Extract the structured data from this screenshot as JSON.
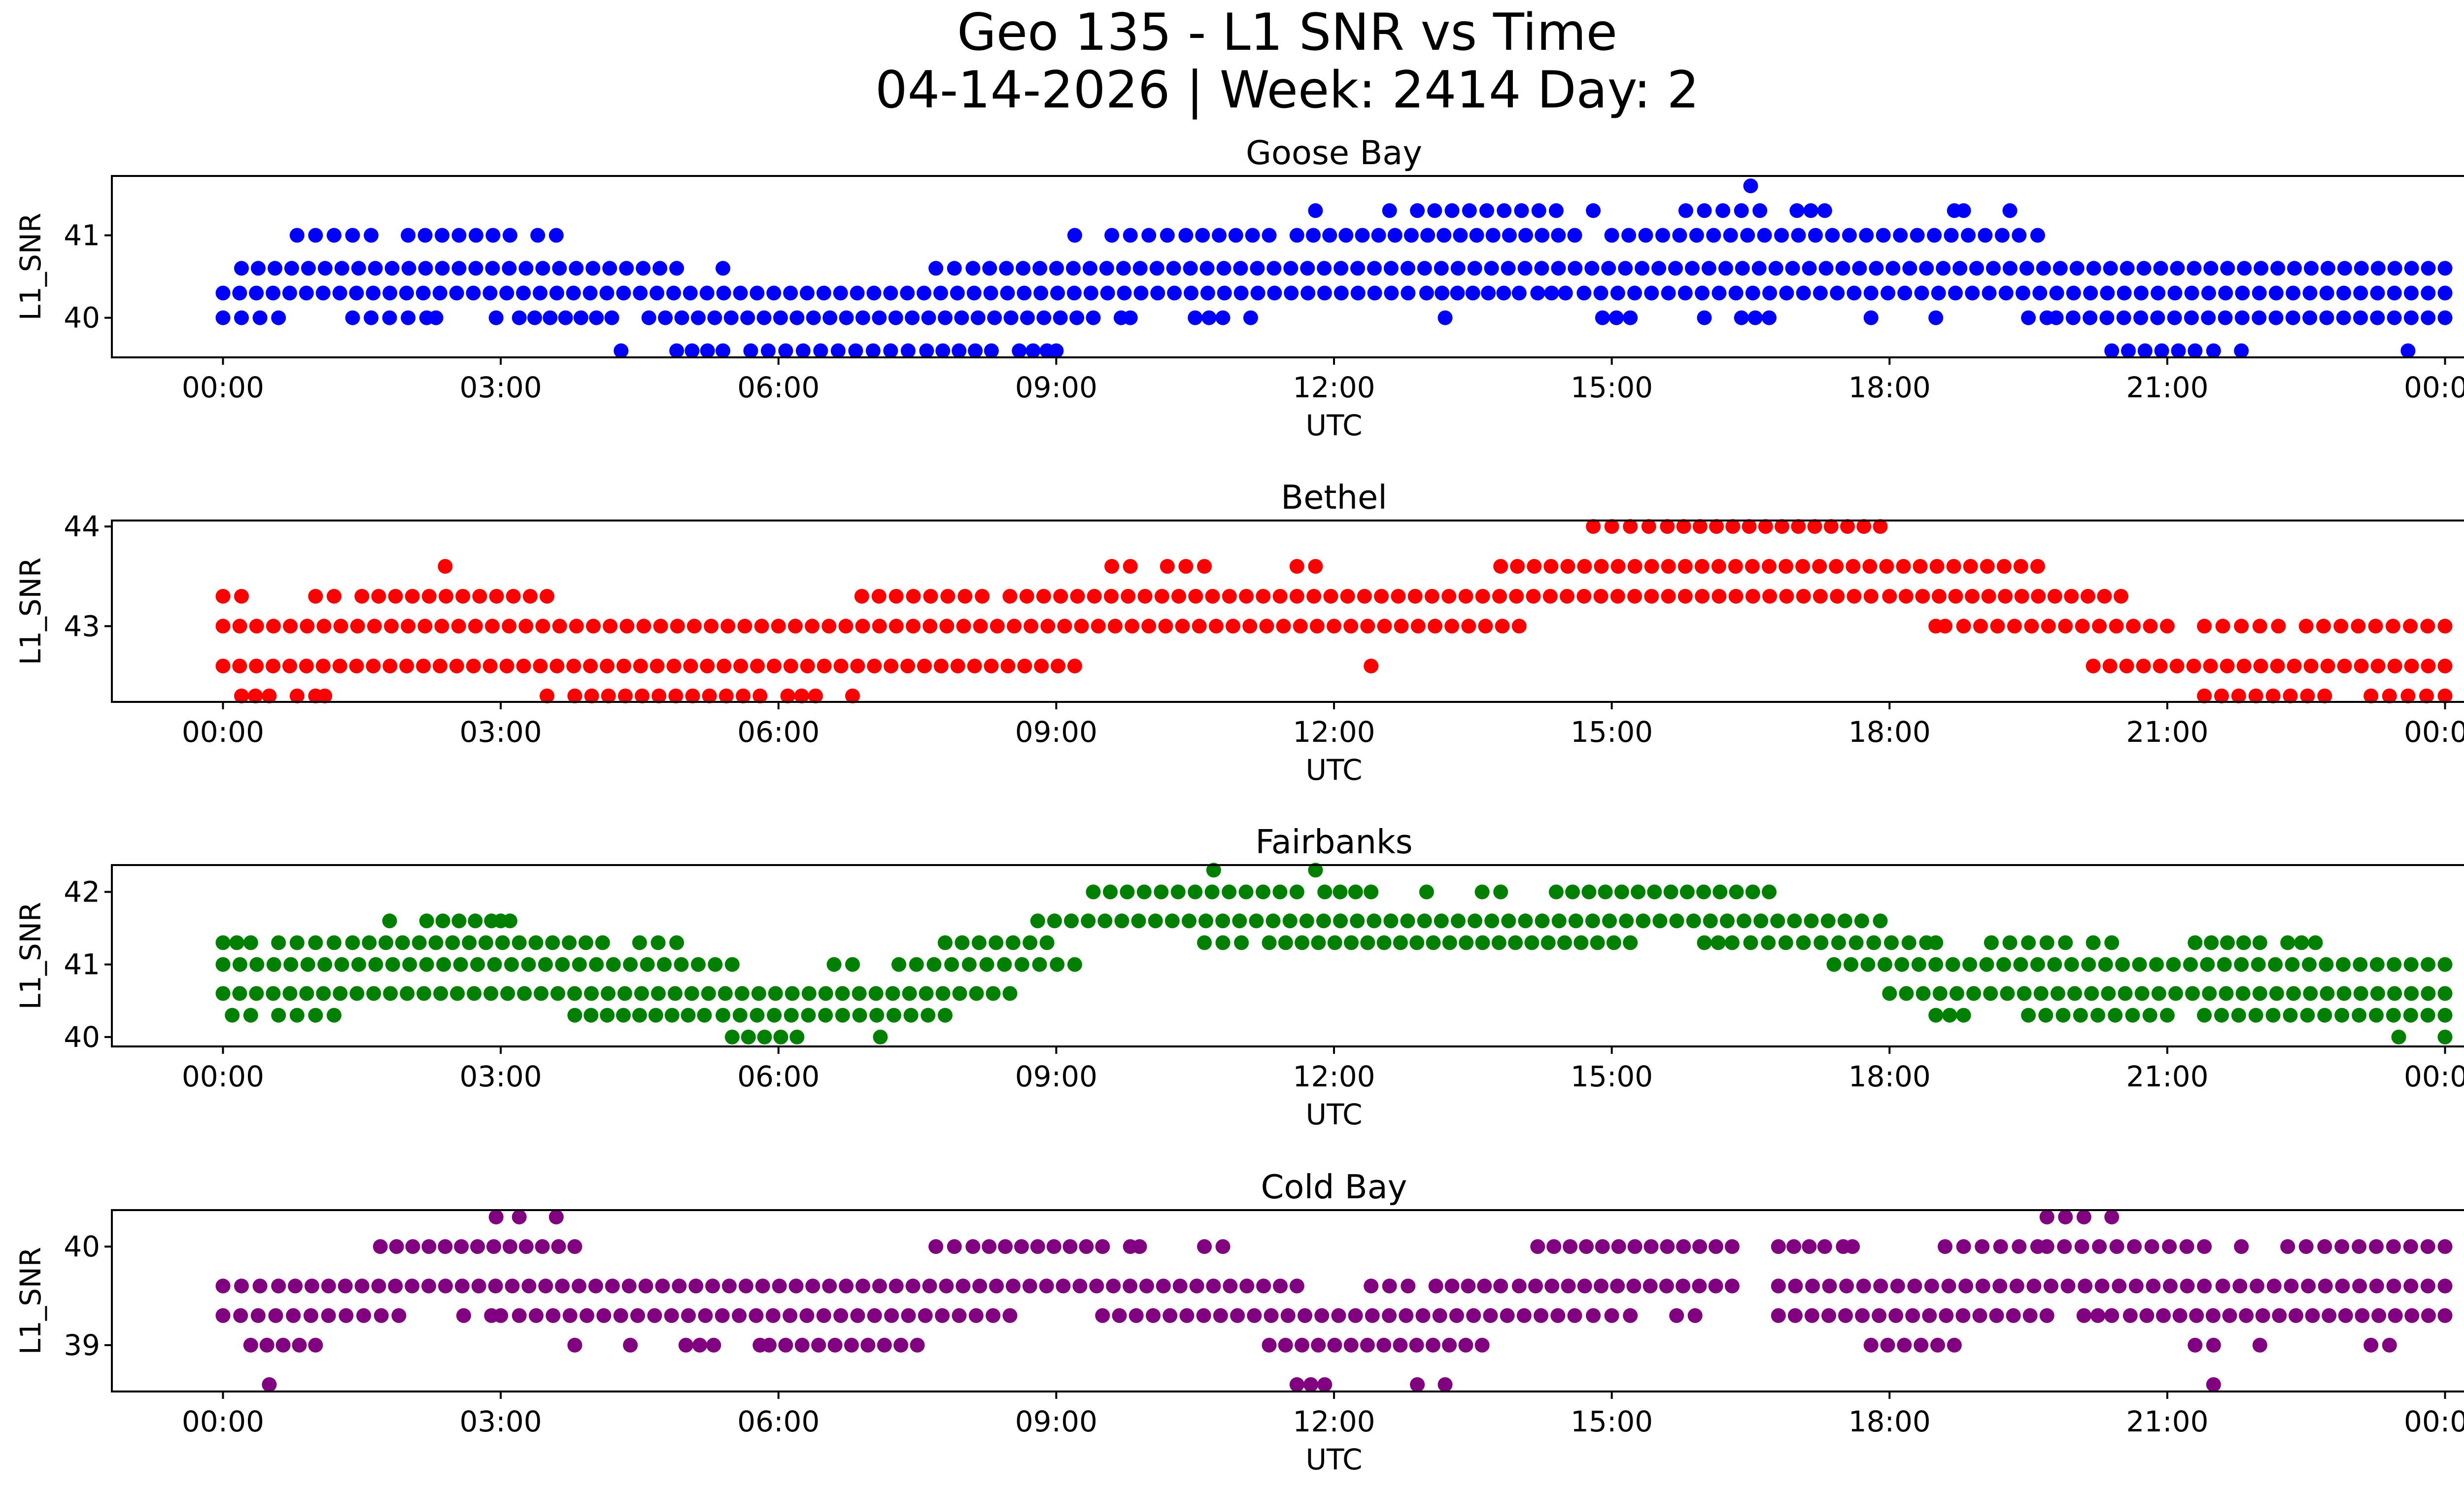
{
  "figure": {
    "title_line1": "Geo 135 - L1 SNR vs Time",
    "title_line2": "04-14-2026 | Week: 2414 Day: 2"
  },
  "chart_data": [
    {
      "type": "scatter",
      "title": "Goose Bay",
      "xlabel": "UTC",
      "ylabel": "L1_SNR",
      "color": "#0000ff",
      "xlim": [
        -1.2,
        25.2
      ],
      "ylim": [
        39.52,
        41.72
      ],
      "xticks": [
        0,
        3,
        6,
        9,
        12,
        15,
        18,
        21,
        24
      ],
      "xtick_labels": [
        "00:00",
        "03:00",
        "06:00",
        "09:00",
        "12:00",
        "15:00",
        "18:00",
        "21:00",
        "00:00"
      ],
      "yticks": [
        40,
        41
      ],
      "ytick_labels": [
        "40",
        "41"
      ],
      "levels": [
        {
          "y": 39.6,
          "segments": [
            [
              4.3,
              4.3
            ],
            [
              4.9,
              5.4
            ],
            [
              5.7,
              7.4
            ],
            [
              7.6,
              8.3
            ],
            [
              8.6,
              8.9
            ],
            [
              9.0,
              9.0
            ],
            [
              20.4,
              21.3
            ],
            [
              21.5,
              21.5
            ],
            [
              21.8,
              21.8
            ],
            [
              23.6,
              23.6
            ]
          ]
        },
        {
          "y": 40.0,
          "segments": [
            [
              0.0,
              0.6
            ],
            [
              1.4,
              2.2
            ],
            [
              2.3,
              2.3
            ],
            [
              2.95,
              3.0
            ],
            [
              3.2,
              4.2
            ],
            [
              4.6,
              9.4
            ],
            [
              9.7,
              9.8
            ],
            [
              10.5,
              10.8
            ],
            [
              11.1,
              11.1
            ],
            [
              13.2,
              13.2
            ],
            [
              14.9,
              15.2
            ],
            [
              16.0,
              16.0
            ],
            [
              16.4,
              16.7
            ],
            [
              17.8,
              17.8
            ],
            [
              18.5,
              18.5
            ],
            [
              19.5,
              19.7
            ],
            [
              19.8,
              24.0
            ]
          ]
        },
        {
          "y": 40.3,
          "segments": [
            [
              0.0,
              12.8
            ],
            [
              13.0,
              14.0
            ],
            [
              14.2,
              14.5
            ],
            [
              14.7,
              24.0
            ]
          ]
        },
        {
          "y": 40.6,
          "segments": [
            [
              0.2,
              4.9
            ],
            [
              5.4,
              5.4
            ],
            [
              7.7,
              7.9
            ],
            [
              8.1,
              24.0
            ]
          ]
        },
        {
          "y": 41.0,
          "segments": [
            [
              0.8,
              1.6
            ],
            [
              2.0,
              3.1
            ],
            [
              3.4,
              3.6
            ],
            [
              9.2,
              9.2
            ],
            [
              9.6,
              10.2
            ],
            [
              10.4,
              11.3
            ],
            [
              11.6,
              14.6
            ],
            [
              15.0,
              19.4
            ],
            [
              19.6,
              19.6
            ]
          ]
        },
        {
          "y": 41.3,
          "segments": [
            [
              11.8,
              11.8
            ],
            [
              12.6,
              12.6
            ],
            [
              12.9,
              14.4
            ],
            [
              14.8,
              14.8
            ],
            [
              15.8,
              16.6
            ],
            [
              17.0,
              17.3
            ],
            [
              18.7,
              18.8
            ],
            [
              19.3,
              19.3
            ]
          ]
        },
        {
          "y": 41.6,
          "segments": [
            [
              16.5,
              16.5
            ]
          ]
        }
      ]
    },
    {
      "type": "scatter",
      "title": "Bethel",
      "xlabel": "UTC",
      "ylabel": "L1_SNR",
      "color": "#ff0000",
      "xlim": [
        -1.2,
        25.2
      ],
      "ylim": [
        42.24,
        44.06
      ],
      "xticks": [
        0,
        3,
        6,
        9,
        12,
        15,
        18,
        21,
        24
      ],
      "xtick_labels": [
        "00:00",
        "03:00",
        "06:00",
        "09:00",
        "12:00",
        "15:00",
        "18:00",
        "21:00",
        "00:00"
      ],
      "yticks": [
        43,
        44
      ],
      "ytick_labels": [
        "43",
        "44"
      ],
      "levels": [
        {
          "y": 42.3,
          "segments": [
            [
              0.2,
              0.5
            ],
            [
              0.8,
              0.8
            ],
            [
              1.0,
              1.1
            ],
            [
              3.5,
              3.5
            ],
            [
              3.8,
              5.8
            ],
            [
              6.1,
              6.4
            ],
            [
              6.8,
              6.8
            ],
            [
              21.4,
              22.7
            ],
            [
              23.2,
              24.0
            ]
          ]
        },
        {
          "y": 42.6,
          "segments": [
            [
              0.0,
              9.2
            ],
            [
              12.4,
              12.4
            ],
            [
              20.2,
              24.0
            ]
          ]
        },
        {
          "y": 43.0,
          "segments": [
            [
              0.0,
              14.0
            ],
            [
              18.5,
              18.6
            ],
            [
              18.8,
              21.0
            ],
            [
              21.4,
              21.4
            ],
            [
              21.6,
              22.2
            ],
            [
              22.5,
              24.0
            ]
          ]
        },
        {
          "y": 43.3,
          "segments": [
            [
              0.0,
              0.2
            ],
            [
              1.0,
              1.2
            ],
            [
              1.5,
              3.5
            ],
            [
              6.9,
              8.2
            ],
            [
              8.5,
              17.8
            ],
            [
              18.0,
              20.5
            ]
          ]
        },
        {
          "y": 43.6,
          "segments": [
            [
              2.4,
              2.4
            ],
            [
              9.6,
              9.8
            ],
            [
              10.2,
              10.6
            ],
            [
              11.6,
              11.8
            ],
            [
              13.8,
              19.6
            ]
          ]
        },
        {
          "y": 44.0,
          "segments": [
            [
              14.8,
              15.0
            ],
            [
              15.2,
              15.4
            ],
            [
              15.6,
              17.9
            ]
          ]
        }
      ]
    },
    {
      "type": "scatter",
      "title": "Fairbanks",
      "xlabel": "UTC",
      "ylabel": "L1_SNR",
      "color": "#008000",
      "xlim": [
        -1.2,
        25.2
      ],
      "ylim": [
        39.87,
        42.37
      ],
      "xticks": [
        0,
        3,
        6,
        9,
        12,
        15,
        18,
        21,
        24
      ],
      "xtick_labels": [
        "00:00",
        "03:00",
        "06:00",
        "09:00",
        "12:00",
        "15:00",
        "18:00",
        "21:00",
        "00:00"
      ],
      "yticks": [
        40,
        41,
        42
      ],
      "ytick_labels": [
        "40",
        "41",
        "42"
      ],
      "levels": [
        {
          "y": 40.0,
          "segments": [
            [
              5.5,
              6.2
            ],
            [
              7.1,
              7.1
            ],
            [
              23.5,
              23.5
            ],
            [
              24.0,
              24.0
            ]
          ]
        },
        {
          "y": 40.3,
          "segments": [
            [
              0.1,
              0.3
            ],
            [
              0.6,
              1.2
            ],
            [
              3.8,
              5.2
            ],
            [
              5.4,
              7.8
            ],
            [
              18.5,
              18.8
            ],
            [
              19.5,
              21.0
            ],
            [
              21.4,
              24.0
            ]
          ]
        },
        {
          "y": 40.6,
          "segments": [
            [
              0.0,
              8.5
            ],
            [
              18.0,
              24.0
            ]
          ]
        },
        {
          "y": 41.0,
          "segments": [
            [
              0.0,
              5.5
            ],
            [
              6.6,
              6.8
            ],
            [
              7.3,
              9.2
            ],
            [
              17.4,
              24.0
            ]
          ]
        },
        {
          "y": 41.3,
          "segments": [
            [
              0.0,
              0.3
            ],
            [
              0.6,
              1.2
            ],
            [
              1.4,
              4.1
            ],
            [
              4.5,
              4.9
            ],
            [
              7.8,
              8.9
            ],
            [
              10.6,
              11.0
            ],
            [
              11.3,
              15.2
            ],
            [
              16.0,
              16.3
            ],
            [
              16.5,
              18.4
            ],
            [
              18.5,
              18.5
            ],
            [
              19.1,
              19.9
            ],
            [
              20.2,
              20.4
            ],
            [
              21.3,
              22.0
            ],
            [
              22.3,
              22.6
            ]
          ]
        },
        {
          "y": 41.6,
          "segments": [
            [
              1.8,
              1.8
            ],
            [
              2.2,
              2.9
            ],
            [
              3.0,
              3.1
            ],
            [
              8.8,
              17.7
            ],
            [
              17.9,
              17.9
            ]
          ]
        },
        {
          "y": 42.0,
          "segments": [
            [
              9.4,
              11.6
            ],
            [
              11.9,
              12.4
            ],
            [
              13.0,
              13.0
            ],
            [
              13.6,
              13.8
            ],
            [
              14.4,
              16.7
            ]
          ]
        },
        {
          "y": 42.3,
          "segments": [
            [
              10.7,
              10.7
            ],
            [
              11.8,
              11.8
            ]
          ]
        }
      ]
    },
    {
      "type": "scatter",
      "title": "Cold Bay",
      "xlabel": "UTC",
      "ylabel": "L1_SNR",
      "color": "#800080",
      "xlim": [
        -1.2,
        25.2
      ],
      "ylim": [
        38.53,
        40.37
      ],
      "xticks": [
        0,
        3,
        6,
        9,
        12,
        15,
        18,
        21,
        24
      ],
      "xtick_labels": [
        "00:00",
        "03:00",
        "06:00",
        "09:00",
        "12:00",
        "15:00",
        "18:00",
        "21:00",
        "00:00"
      ],
      "yticks": [
        39,
        40
      ],
      "ytick_labels": [
        "39",
        "40"
      ],
      "levels": [
        {
          "y": 38.6,
          "segments": [
            [
              0.5,
              0.5
            ],
            [
              11.6,
              11.9
            ],
            [
              12.9,
              12.9
            ],
            [
              13.2,
              13.2
            ],
            [
              21.5,
              21.5
            ]
          ]
        },
        {
          "y": 39.0,
          "segments": [
            [
              0.3,
              1.0
            ],
            [
              3.8,
              3.8
            ],
            [
              4.4,
              4.4
            ],
            [
              5.0,
              5.3
            ],
            [
              5.8,
              5.8
            ],
            [
              5.9,
              7.5
            ],
            [
              11.3,
              13.6
            ],
            [
              17.8,
              18.7
            ],
            [
              21.3,
              21.5
            ],
            [
              22.0,
              22.0
            ],
            [
              23.2,
              23.4
            ]
          ]
        },
        {
          "y": 39.3,
          "segments": [
            [
              0.0,
              1.9
            ],
            [
              2.6,
              2.6
            ],
            [
              2.9,
              3.0
            ],
            [
              3.2,
              8.5
            ],
            [
              9.5,
              14.6
            ],
            [
              14.8,
              15.2
            ],
            [
              15.7,
              15.9
            ],
            [
              16.8,
              19.7
            ],
            [
              20.1,
              20.4
            ],
            [
              20.6,
              24.0
            ]
          ]
        },
        {
          "y": 39.6,
          "segments": [
            [
              0.0,
              0.4
            ],
            [
              0.6,
              11.6
            ],
            [
              12.4,
              12.8
            ],
            [
              13.1,
              13.8
            ],
            [
              14.0,
              16.3
            ],
            [
              16.8,
              21.4
            ],
            [
              21.6,
              24.0
            ]
          ]
        },
        {
          "y": 40.0,
          "segments": [
            [
              1.7,
              3.8
            ],
            [
              7.7,
              7.9
            ],
            [
              8.1,
              9.5
            ],
            [
              9.8,
              9.9
            ],
            [
              10.6,
              10.8
            ],
            [
              14.2,
              16.3
            ],
            [
              16.8,
              17.3
            ],
            [
              17.5,
              17.6
            ],
            [
              18.6,
              18.8
            ],
            [
              19.0,
              19.2
            ],
            [
              19.4,
              19.6
            ],
            [
              19.7,
              21.4
            ],
            [
              21.8,
              21.8
            ],
            [
              22.3,
              22.5
            ],
            [
              22.7,
              24.0
            ]
          ]
        },
        {
          "y": 40.3,
          "segments": [
            [
              2.95,
              3.0
            ],
            [
              3.2,
              3.2
            ],
            [
              3.6,
              3.6
            ],
            [
              19.7,
              20.1
            ],
            [
              20.4,
              20.4
            ]
          ]
        }
      ]
    }
  ]
}
